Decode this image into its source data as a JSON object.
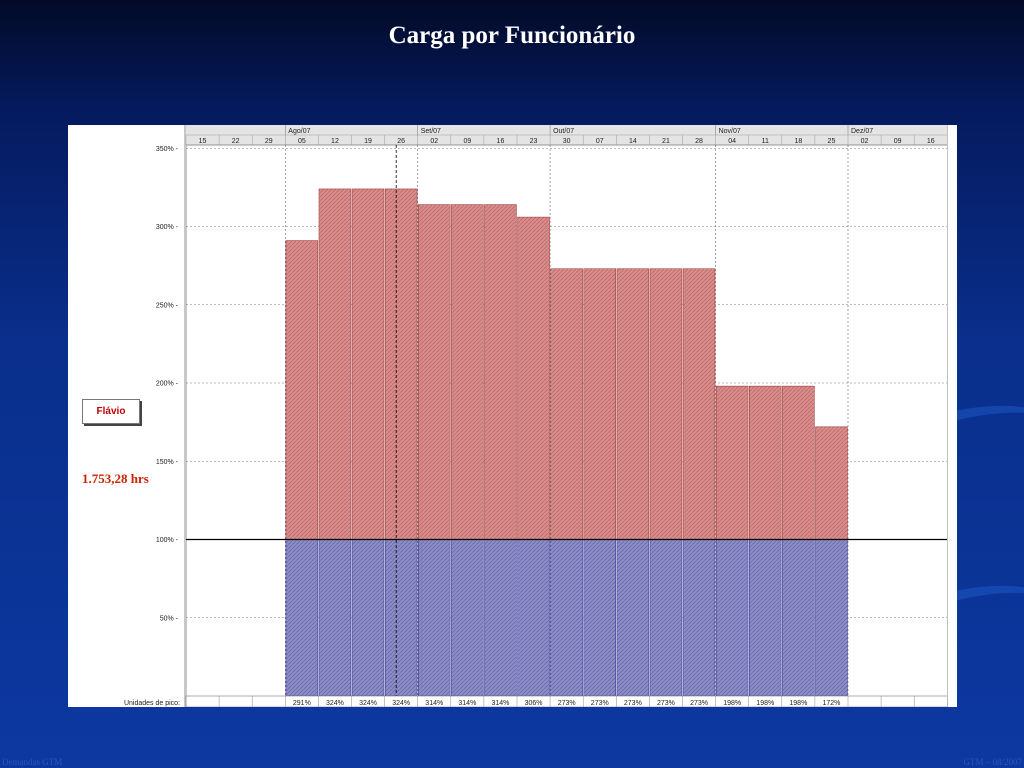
{
  "slide": {
    "title": "Carga por Funcionário",
    "footer_left": "Demandas GTM",
    "footer_right": "GTM – 08/2007"
  },
  "resource": {
    "name": "Flávio",
    "hours": "1.753,28 hrs"
  },
  "colors": {
    "overallocation": "#d88c8c",
    "allocation": "#8c8cc8",
    "background": "#0a2f8c"
  },
  "chart_data": {
    "type": "bar",
    "stacked": true,
    "months": [
      {
        "label": "Ago/07",
        "start_week": 3
      },
      {
        "label": "Set/07",
        "start_week": 7
      },
      {
        "label": "Out/07",
        "start_week": 11
      },
      {
        "label": "Nov/07",
        "start_week": 16
      },
      {
        "label": "Dez/07",
        "start_week": 20
      }
    ],
    "categories": [
      "15",
      "22",
      "29",
      "05",
      "12",
      "19",
      "26",
      "02",
      "09",
      "16",
      "23",
      "30",
      "07",
      "14",
      "21",
      "28",
      "04",
      "11",
      "18",
      "25",
      "02",
      "09",
      "16"
    ],
    "values": [
      null,
      null,
      null,
      291,
      324,
      324,
      324,
      314,
      314,
      314,
      306,
      273,
      273,
      273,
      273,
      273,
      198,
      198,
      198,
      172,
      null,
      null,
      null
    ],
    "peak_labels": [
      "",
      "",
      "",
      "291%",
      "324%",
      "324%",
      "324%",
      "314%",
      "314%",
      "314%",
      "306%",
      "273%",
      "273%",
      "273%",
      "273%",
      "273%",
      "198%",
      "198%",
      "198%",
      "172%",
      "",
      "",
      ""
    ],
    "yticks": [
      "50%",
      "100%",
      "150%",
      "200%",
      "250%",
      "300%",
      "350%"
    ],
    "ylim": [
      0,
      350
    ],
    "capacity_line": 100,
    "footer_row_label": "Unidades de pico:",
    "grid": true
  }
}
